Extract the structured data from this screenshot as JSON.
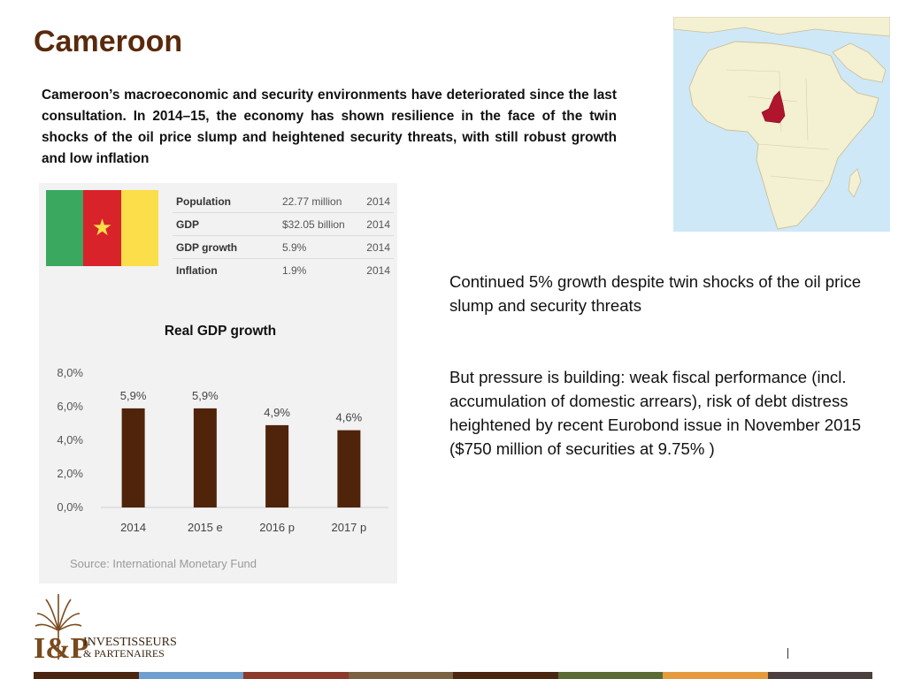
{
  "slide": {
    "title": "Cameroon",
    "intro": "Cameroon’s macroeconomic and security environments have deteriorated since the last consultation. In 2014–15, the economy has shown resilience in the face of the twin shocks of the oil price slump and heightened security threats, with still robust growth and low inflation"
  },
  "stats": [
    {
      "label": "Population",
      "value": "22.77 million",
      "year": "2014"
    },
    {
      "label": "GDP",
      "value": "$32.05 billion",
      "year": "2014"
    },
    {
      "label": "GDP growth",
      "value": "5.9%",
      "year": "2014"
    },
    {
      "label": "Inflation",
      "value": "1.9%",
      "year": "2014"
    }
  ],
  "chart_data": {
    "type": "bar",
    "title": "Real GDP growth",
    "categories": [
      "2014",
      "2015 e",
      "2016 p",
      "2017 p"
    ],
    "values": [
      5.9,
      5.9,
      4.9,
      4.6
    ],
    "data_labels": [
      "5,9%",
      "5,9%",
      "4,9%",
      "4,6%"
    ],
    "y_ticks": [
      "0,0%",
      "2,0%",
      "4,0%",
      "6,0%",
      "8,0%"
    ],
    "ylim": [
      0,
      8
    ],
    "bar_color": "#4f240b",
    "source": "Source: International Monetary Fund",
    "grid": false
  },
  "right": {
    "p1": "Continued 5% growth despite twin shocks of the oil price slump and security threats",
    "p2": "But pressure is building: weak fiscal performance (incl. accumulation of domestic arrears), risk of debt distress heightened by recent Eurobond issue in November 2015 ($750 million of securities at 9.75% )"
  },
  "logo": {
    "monogram": "I&P",
    "line1": "INVESTISSEURS",
    "line2": "& PARTENAIRES"
  },
  "colors": {
    "title": "#5a2a0c",
    "map_land": "#f4f0d2",
    "map_sea": "#cfe8f7",
    "highlight": "#b0152e",
    "footer": [
      "#4a2510",
      "#6f9fcf",
      "#8b3a2b",
      "#7a6242",
      "#4a2510",
      "#5c6b36",
      "#e49a3d",
      "#4c3f3f"
    ]
  }
}
